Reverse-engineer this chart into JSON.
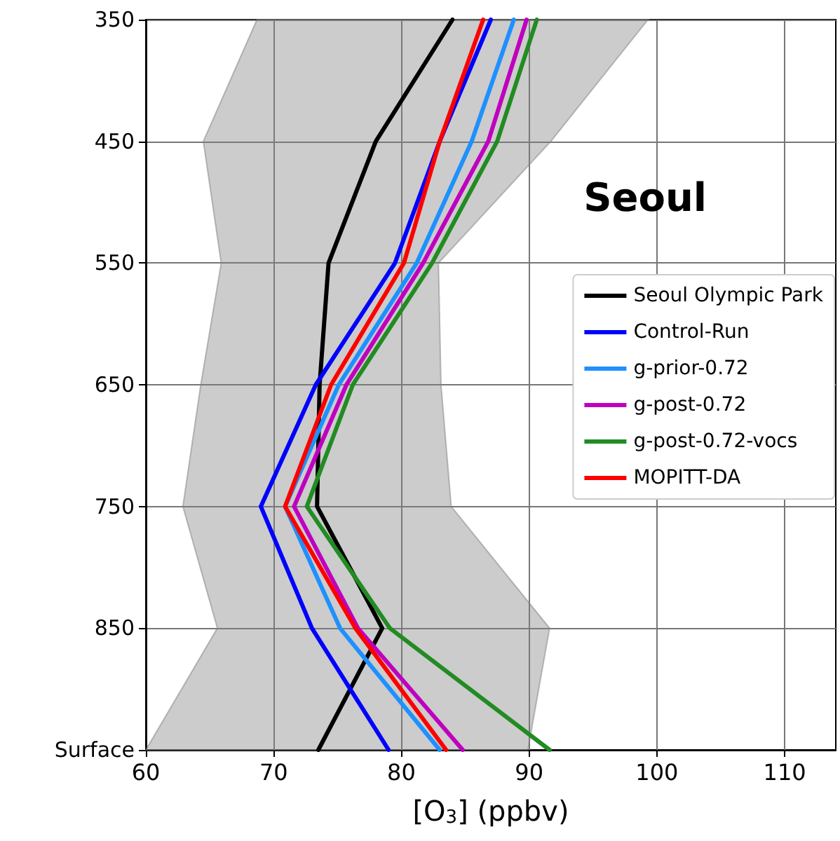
{
  "chart_data": {
    "type": "line",
    "orientation": "horizontal",
    "title": "Seoul",
    "xlabel": "[O$_{3}$] (ppbv)",
    "categories": [
      "350",
      "450",
      "550",
      "650",
      "750",
      "850",
      "Surface"
    ],
    "xlim": [
      60,
      114
    ],
    "xticks": [
      60,
      70,
      80,
      90,
      100,
      110
    ],
    "grid": true,
    "legend": "right",
    "marker": "none",
    "line_style": "solid",
    "series": [
      {
        "name": "Seoul Olympic Park",
        "color": "#000000",
        "values": [
          84.0,
          78.0,
          74.3,
          73.6,
          73.4,
          78.5,
          73.5
        ],
        "lower": [
          68.7,
          64.5,
          65.9,
          64.3,
          62.9,
          65.6,
          60
        ],
        "upper": [
          99.3,
          91.7,
          82.9,
          83.1,
          83.9,
          91.6,
          89.9
        ]
      },
      {
        "name": "Control-Run",
        "color": "#0000ff",
        "values": [
          87.0,
          83.0,
          79.5,
          73.3,
          69.0,
          73.0,
          79.0
        ]
      },
      {
        "name": "g-prior-0.72",
        "color": "#1e90ff",
        "values": [
          88.8,
          85.5,
          81.2,
          75.1,
          70.9,
          75.2,
          83.0
        ]
      },
      {
        "name": "g-post-0.72",
        "color": "#bf00bf",
        "values": [
          89.8,
          86.8,
          81.7,
          75.7,
          71.6,
          76.6,
          84.8
        ]
      },
      {
        "name": "g-post-0.72-vocs",
        "color": "#228b22",
        "values": [
          90.6,
          87.5,
          82.4,
          76.2,
          72.6,
          79.1,
          91.6
        ]
      },
      {
        "name": "MOPITT-DA",
        "color": "#ff0000",
        "values": [
          86.4,
          83.0,
          80.2,
          74.5,
          70.9,
          76.4,
          83.5
        ]
      }
    ]
  }
}
